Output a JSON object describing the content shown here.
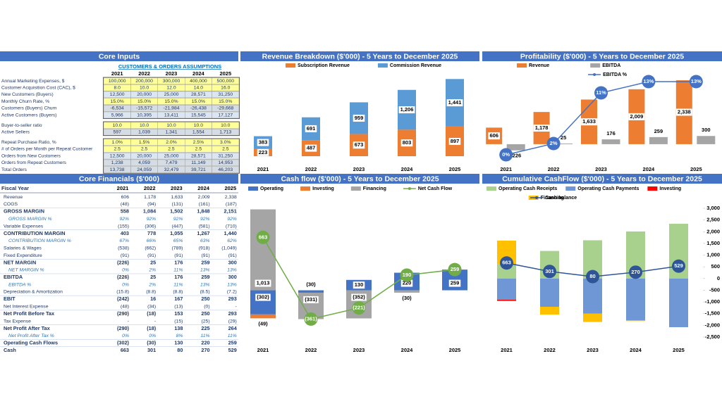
{
  "core_inputs": {
    "title": "Core Inputs",
    "section": "CUSTOMERS & ORDERS ASSUMPTIONS",
    "years": [
      "2021",
      "2022",
      "2023",
      "2024",
      "2025"
    ],
    "rows": [
      {
        "label": "Annual Marketing Expenses, $",
        "values": [
          "100,000",
          "200,000",
          "300,000",
          "400,000",
          "500,000"
        ]
      },
      {
        "label": "Customer Acquisition Cost (CAC), $",
        "values": [
          "8.0",
          "10.0",
          "12.0",
          "14.0",
          "16.0"
        ]
      },
      {
        "label": "New Customers (Buyers)",
        "values": [
          "12,500",
          "20,000",
          "25,000",
          "28,571",
          "31,250"
        ]
      },
      {
        "label": "Monthly Churn Rate, %",
        "values": [
          "15.0%",
          "15.0%",
          "15.0%",
          "15.0%",
          "15.0%"
        ]
      },
      {
        "label": "Customers (Buyers) Churn",
        "values": [
          "-6,534",
          "-15,572",
          "-21,984",
          "-26,438",
          "-29,668"
        ]
      },
      {
        "label": "Active Customers (Buyers)",
        "values": [
          "5,966",
          "10,395",
          "13,411",
          "15,545",
          "17,127"
        ]
      },
      {
        "label": "Buyer-to-seller ratio",
        "values": [
          "10.0",
          "10.0",
          "10.0",
          "10.0",
          "10.0"
        ]
      },
      {
        "label": "Active Sellers",
        "values": [
          "597",
          "1,039",
          "1,341",
          "1,554",
          "1,713"
        ]
      },
      {
        "label": "Repeat Purchase Ratio, %",
        "values": [
          "1.0%",
          "1.5%",
          "2.0%",
          "2.5%",
          "3.0%"
        ]
      },
      {
        "label": "# of Orders per Month per Repeat Customer",
        "values": [
          "2.5",
          "2.5",
          "2.5",
          "2.5",
          "2.5"
        ]
      },
      {
        "label": "Orders from New Customers",
        "values": [
          "12,500",
          "20,000",
          "25,000",
          "28,571",
          "31,250"
        ]
      },
      {
        "label": "Orders from Repeat Customers",
        "values": [
          "1,238",
          "4,059",
          "7,479",
          "11,149",
          "14,953"
        ]
      },
      {
        "label": "Total Orders",
        "values": [
          "13,738",
          "24,059",
          "32,479",
          "39,721",
          "46,203"
        ]
      }
    ]
  },
  "core_financials": {
    "title": "Core Financials ($'000)",
    "header": "Fiscal Year",
    "years": [
      "2021",
      "2022",
      "2023",
      "2024",
      "2025"
    ],
    "rows": [
      {
        "label": "Revenue",
        "values": [
          "606",
          "1,178",
          "1,633",
          "2,009",
          "2,338"
        ]
      },
      {
        "label": "COGS",
        "values": [
          "(48)",
          "(94)",
          "(131)",
          "(161)",
          "(187)"
        ]
      },
      {
        "label": "GROSS MARGIN",
        "values": [
          "558",
          "1,084",
          "1,502",
          "1,848",
          "2,151"
        ]
      },
      {
        "label": "GROSS MARGIN %",
        "values": [
          "92%",
          "92%",
          "92%",
          "92%",
          "92%"
        ]
      },
      {
        "label": "Variable Expenses",
        "values": [
          "(155)",
          "(306)",
          "(447)",
          "(581)",
          "(710)"
        ]
      },
      {
        "label": "CONTRIBUTION MARGIN",
        "values": [
          "403",
          "778",
          "1,055",
          "1,267",
          "1,440"
        ]
      },
      {
        "label": "CONTRIBUTION MARGIN %",
        "values": [
          "67%",
          "66%",
          "65%",
          "63%",
          "62%"
        ]
      },
      {
        "label": "Salaries & Wages",
        "values": [
          "(538)",
          "(662)",
          "(789)",
          "(918)",
          "(1,049)"
        ]
      },
      {
        "label": "Fixed Expenditure",
        "values": [
          "(91)",
          "(91)",
          "(91)",
          "(91)",
          "(91)"
        ]
      },
      {
        "label": "NET MARGIN",
        "values": [
          "(226)",
          "25",
          "176",
          "259",
          "300"
        ]
      },
      {
        "label": "NET MARGIN %",
        "values": [
          "0%",
          "2%",
          "11%",
          "13%",
          "13%"
        ]
      },
      {
        "label": "EBITDA",
        "values": [
          "(226)",
          "25",
          "176",
          "259",
          "300"
        ]
      },
      {
        "label": "EBITDA %",
        "values": [
          "0%",
          "2%",
          "11%",
          "13%",
          "13%"
        ]
      },
      {
        "label": "Depreciation & Amortization",
        "values": [
          "(15.8)",
          "(8.8)",
          "(8.8)",
          "(8.5)",
          "(7.2)"
        ]
      },
      {
        "label": "EBIT",
        "values": [
          "(242)",
          "16",
          "167",
          "250",
          "293"
        ]
      },
      {
        "label": "Net Interest Expense",
        "values": [
          "(48)",
          "(34)",
          "(13)",
          "(0)",
          "-"
        ]
      },
      {
        "label": "Net Profit Before Tax",
        "values": [
          "(290)",
          "(18)",
          "153",
          "250",
          "293"
        ]
      },
      {
        "label": "Tax Expense",
        "values": [
          "-",
          "-",
          "(15)",
          "(25)",
          "(29)"
        ]
      },
      {
        "label": "Net Profit After Tax",
        "values": [
          "(290)",
          "(18)",
          "138",
          "225",
          "264"
        ]
      },
      {
        "label": "Net Profit After Tax %",
        "values": [
          "0%",
          "0%",
          "8%",
          "11%",
          "11%"
        ]
      },
      {
        "label": "Operating Cash Flows",
        "values": [
          "(302)",
          "(30)",
          "130",
          "220",
          "259"
        ]
      },
      {
        "label": "Cash",
        "values": [
          "663",
          "301",
          "80",
          "270",
          "529"
        ]
      }
    ]
  },
  "chart_data": [
    {
      "type": "bar",
      "stacked": true,
      "title": "Revenue Breakdown ($'000) - 5 Years to December 2025",
      "categories": [
        "2021",
        "2022",
        "2023",
        "2024",
        "2025"
      ],
      "series": [
        {
          "name": "Subscription Revenue",
          "color": "#ed7d31",
          "values": [
            223,
            487,
            673,
            803,
            897
          ]
        },
        {
          "name": "Commission Revenue",
          "color": "#5b9bd5",
          "values": [
            383,
            691,
            959,
            1206,
            1441
          ],
          "value_labels": [
            "383",
            "691",
            "959",
            "1,206",
            "1,441"
          ]
        }
      ],
      "ylim": [
        0,
        2600
      ]
    },
    {
      "type": "bar",
      "stacked": false,
      "title": "Profitability ($'000) - 5 Years to December 2025",
      "categories": [
        "2021",
        "2022",
        "2023",
        "2024",
        "2025"
      ],
      "series": [
        {
          "name": "Revenue",
          "color": "#ed7d31",
          "values": [
            606,
            1178,
            1633,
            2009,
            2338
          ],
          "value_labels": [
            "606",
            "1,178",
            "1,633",
            "2,009",
            "2,338"
          ]
        },
        {
          "name": "EBITDA",
          "color": "#a5a5a5",
          "values": [
            -226,
            25,
            176,
            259,
            300
          ]
        },
        {
          "name": "EBITDA %",
          "type": "line",
          "axis": "y2",
          "color": "#4472c4",
          "values": [
            0,
            2,
            11,
            13,
            13
          ],
          "value_labels": [
            "0%",
            "2%",
            "11%",
            "13%",
            "13%"
          ]
        }
      ],
      "ylim": [
        -800,
        2700
      ],
      "y2lim": [
        -2,
        15
      ]
    },
    {
      "type": "bar",
      "stacked": true,
      "title": "Cash flow ($'000) - 5 Years to December 2025",
      "categories": [
        "2021",
        "2022",
        "2023",
        "2024",
        "2025"
      ],
      "series": [
        {
          "name": "Operating",
          "color": "#4472c4",
          "values": [
            -302,
            -30,
            130,
            220,
            259
          ],
          "value_labels": [
            "(302)",
            "(30)",
            "130",
            "220",
            "259"
          ]
        },
        {
          "name": "Investing",
          "color": "#ed7d31",
          "values": [
            -49,
            null,
            null,
            null,
            null
          ],
          "value_labels": [
            "(49)",
            null,
            null,
            null,
            null
          ]
        },
        {
          "name": "Financing",
          "color": "#a5a5a5",
          "values": [
            1013,
            -331,
            -352,
            -30,
            null
          ],
          "value_labels": [
            "1,013",
            "(331)",
            "(352)",
            "(30)",
            null
          ]
        },
        {
          "name": "Net Cash Flow",
          "type": "line",
          "color": "#70ad47",
          "values": [
            663,
            -361,
            -221,
            190,
            259
          ],
          "value_labels": [
            "663",
            "(361)",
            "(221)",
            "190",
            "259"
          ]
        }
      ],
      "ylim": [
        -700,
        1300
      ]
    },
    {
      "type": "bar",
      "stacked": true,
      "title": "Cumulative CashFlow ($'000) - 5 Years to December 2025",
      "categories": [
        "2021",
        "2022",
        "2023",
        "2024",
        "2025"
      ],
      "series": [
        {
          "name": "Operating Cash Receipts",
          "color": "#a9d18e",
          "values": [
            606,
            1178,
            1633,
            2009,
            2338
          ]
        },
        {
          "name": "Operating Cash Payments",
          "color": "#6f97d6",
          "values": [
            -908,
            -1208,
            -1503,
            -1789,
            -2079
          ]
        },
        {
          "name": "Investing",
          "color": "#ff0000",
          "values": [
            -49,
            null,
            null,
            null,
            null
          ]
        },
        {
          "name": "Financing",
          "color": "#ffc000",
          "values": [
            1013,
            -331,
            -352,
            -30,
            null
          ]
        },
        {
          "name": "Cash balance",
          "type": "line",
          "color": "#2f5597",
          "values": [
            663,
            301,
            80,
            270,
            529
          ]
        }
      ],
      "ylim": [
        -2500,
        3000
      ],
      "yticks": [
        {
          "value": 3000,
          "label": "3,000"
        },
        {
          "value": 2500,
          "label": "2,500"
        },
        {
          "value": 2000,
          "label": "2,000"
        },
        {
          "value": 1500,
          "label": "1,500"
        },
        {
          "value": 1000,
          "label": "1,000"
        },
        500,
        0,
        -500,
        {
          "value": -1000,
          "label": "-1,000"
        },
        {
          "value": -1500,
          "label": "-1,500"
        },
        {
          "value": -2000,
          "label": "-2,000"
        },
        {
          "value": -2500,
          "label": "-2,500"
        }
      ],
      "y_axis_side": "right"
    }
  ]
}
